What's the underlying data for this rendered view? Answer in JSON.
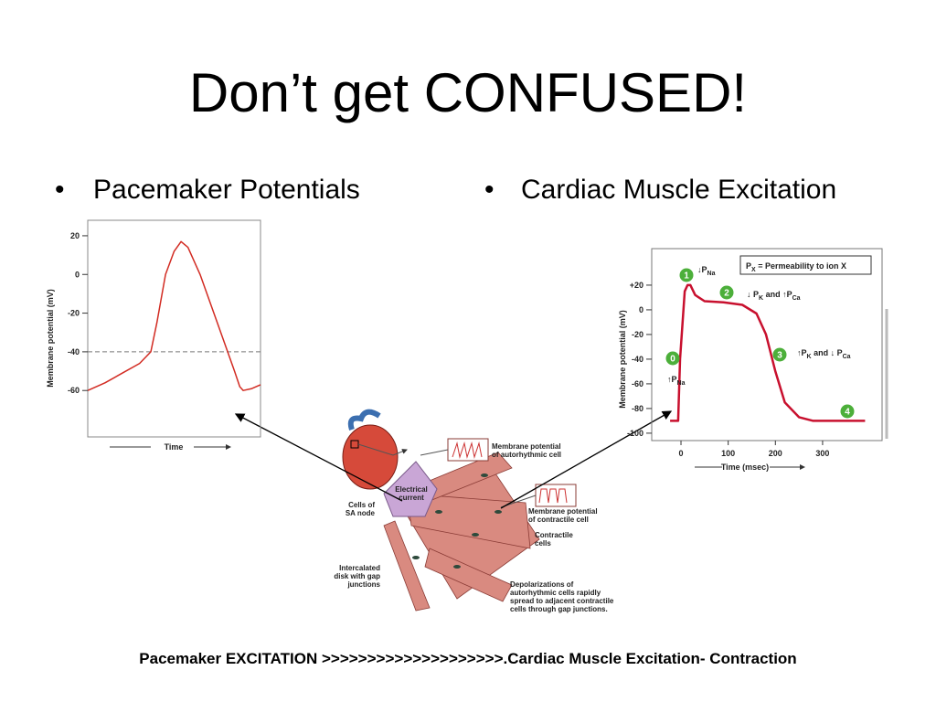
{
  "title": "Don’t get CONFUSED!",
  "bullets": [
    "Pacemaker Potentials",
    "Cardiac Muscle Excitation"
  ],
  "footer": "Pacemaker EXCITATION >>>>>>>>>>>>>>>>>>>>.Cardiac Muscle Excitation- Contraction",
  "chart_data": [
    {
      "type": "line",
      "y_label": "Membrane potential (mV)",
      "x_label": "Time",
      "color": "#d22b22",
      "x": [
        0,
        10,
        20,
        30,
        36.5,
        40,
        45,
        50,
        54,
        58,
        65,
        75,
        85,
        88,
        90,
        95,
        100
      ],
      "values": [
        -60,
        -56,
        -51,
        -46,
        -40,
        -25,
        0,
        12,
        17,
        14,
        0,
        -25,
        -50,
        -58,
        -60,
        -59,
        -57
      ],
      "xlim": [
        0,
        100
      ],
      "ylim": [
        -84,
        28
      ],
      "yticks": [
        20,
        0,
        -20,
        -40,
        -60
      ],
      "hlines": [
        -40
      ]
    },
    {
      "type": "line",
      "y_label": "Membrane potential (mV)",
      "x_label": "Time (msec)",
      "color": "#c8102e",
      "x": [
        -23,
        -6,
        -2,
        8,
        14,
        20,
        30,
        50,
        90,
        130,
        160,
        180,
        200,
        220,
        250,
        280,
        390
      ],
      "values": [
        -90,
        -90,
        -40,
        15,
        20,
        20,
        12,
        7,
        6,
        4,
        -3,
        -20,
        -50,
        -75,
        -87,
        -90,
        -90
      ],
      "xlim": [
        -62,
        426
      ],
      "ylim": [
        -106,
        49.6
      ],
      "xticks": [
        0,
        100,
        200,
        300
      ],
      "yticks": [
        {
          "value": 20,
          "label": "+20"
        },
        0,
        -20,
        -40,
        -60,
        -80,
        -100
      ],
      "legend_text": [
        "P",
        "X",
        " = Permeability to ion X"
      ],
      "annotations": [
        {
          "num": "0",
          "text": [
            "↑P",
            "Na"
          ]
        },
        {
          "num": "1",
          "text": [
            "↓P",
            "Na"
          ]
        },
        {
          "num": "2",
          "text": [
            "↓ P",
            "K",
            " and ↑P",
            "Ca"
          ]
        },
        {
          "num": "3",
          "text": [
            "↑P",
            "K",
            " and ↓ P",
            "Ca"
          ]
        },
        {
          "num": "4",
          "text": []
        }
      ]
    }
  ],
  "diagram": {
    "labels": [
      [
        "Membrane potential",
        "of autorhythmic cell"
      ],
      [
        "Electrical",
        "current"
      ],
      [
        "Cells of",
        "SA node"
      ],
      [
        "Membrane potential",
        "of contractile cell"
      ],
      [
        "Contractile",
        "cells"
      ],
      [
        "Intercalated",
        "disk with gap",
        "junctions"
      ],
      [
        "Depolarizations of",
        "autorhythmic cells rapidly",
        "spread to adjacent contractile",
        "cells through gap junctions."
      ]
    ]
  }
}
